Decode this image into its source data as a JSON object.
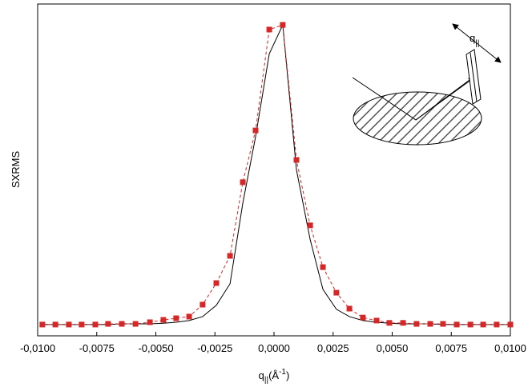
{
  "chart_data": {
    "type": "line",
    "y_label": "SXRMS",
    "x_label_parts": [
      "q",
      "||",
      "(Å",
      "-1",
      ")"
    ],
    "inset_label": "q",
    "inset_label_sub": "||",
    "x": [
      -0.0098,
      -0.00925,
      -0.00868,
      -0.00814,
      -0.00756,
      -0.00702,
      -0.00644,
      -0.00586,
      -0.00525,
      -0.00468,
      -0.00414,
      -0.00359,
      -0.00302,
      -0.00244,
      -0.00186,
      -0.00132,
      -0.00078,
      -0.0002,
      0.00037,
      0.00095,
      0.00153,
      0.00207,
      0.00264,
      0.00319,
      0.00376,
      0.00434,
      0.00488,
      0.00546,
      0.00603,
      0.00661,
      0.00715,
      0.00773,
      0.00831,
      0.00885,
      0.00942,
      0.01
    ],
    "series": [
      {
        "color": "#000000",
        "style": "solid",
        "values": [
          0.034,
          0.034,
          0.034,
          0.034,
          0.034,
          0.034,
          0.036,
          0.036,
          0.036,
          0.038,
          0.041,
          0.046,
          0.058,
          0.092,
          0.157,
          0.4,
          0.6,
          0.85,
          0.937,
          0.5,
          0.29,
          0.14,
          0.08,
          0.058,
          0.046,
          0.041,
          0.038,
          0.036,
          0.036,
          0.036,
          0.034,
          0.034,
          0.034,
          0.034,
          0.034,
          0.034
        ]
      },
      {
        "color": "#d62728",
        "style": "dashed-markers",
        "values": [
          0.034,
          0.034,
          0.034,
          0.034,
          0.034,
          0.036,
          0.036,
          0.036,
          0.041,
          0.048,
          0.053,
          0.058,
          0.094,
          0.159,
          0.241,
          0.463,
          0.619,
          0.923,
          0.937,
          0.53,
          0.333,
          0.207,
          0.13,
          0.082,
          0.055,
          0.046,
          0.039,
          0.039,
          0.036,
          0.036,
          0.036,
          0.034,
          0.034,
          0.034,
          0.034,
          0.034
        ]
      }
    ],
    "xlim": [
      -0.01,
      0.01
    ],
    "ylim": [
      0,
      1
    ],
    "xticks": [
      {
        "value": -0.01,
        "label": "-0,0100"
      },
      {
        "value": -0.0075,
        "label": "-0,0075"
      },
      {
        "value": -0.005,
        "label": "-0,0050"
      },
      {
        "value": -0.0025,
        "label": "-0,0025"
      },
      {
        "value": 0,
        "label": "0,0000"
      },
      {
        "value": 0.0025,
        "label": "0,0025"
      },
      {
        "value": 0.005,
        "label": "0,0050"
      },
      {
        "value": 0.0075,
        "label": "0,0075"
      },
      {
        "value": 0.01,
        "label": "0,0100"
      }
    ]
  }
}
